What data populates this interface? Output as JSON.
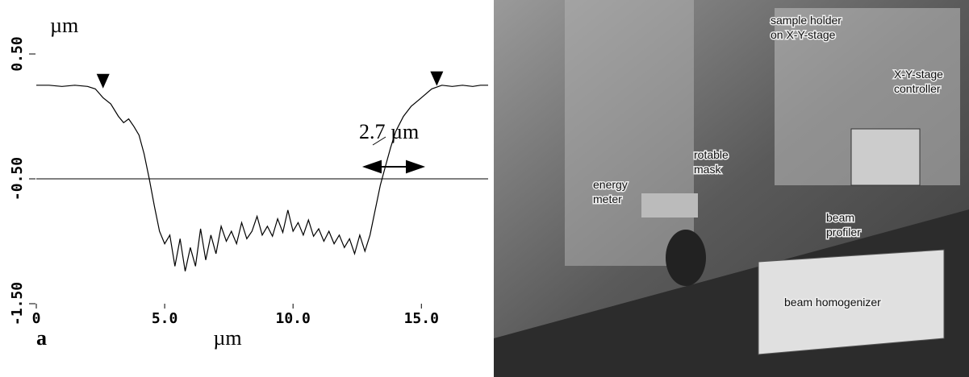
{
  "chart_data": {
    "type": "line",
    "y_unit_label": "µm",
    "x_axis_label": "µm",
    "panel_label": "a",
    "annotation": "2.7 µm",
    "x": [
      0,
      0.5,
      1,
      1.5,
      2,
      2.3,
      2.6,
      2.9,
      3.2,
      3.4,
      3.6,
      3.8,
      4.0,
      4.2,
      4.4,
      4.6,
      4.8,
      5.0,
      5.2,
      5.4,
      5.6,
      5.8,
      6.0,
      6.2,
      6.4,
      6.6,
      6.8,
      7.0,
      7.2,
      7.4,
      7.6,
      7.8,
      8.0,
      8.2,
      8.4,
      8.6,
      8.8,
      9.0,
      9.2,
      9.4,
      9.6,
      9.8,
      10.0,
      10.2,
      10.4,
      10.6,
      10.8,
      11.0,
      11.2,
      11.4,
      11.6,
      11.8,
      12.0,
      12.2,
      12.4,
      12.6,
      12.8,
      13.0,
      13.2,
      13.4,
      13.6,
      13.8,
      14.0,
      14.3,
      14.6,
      15.0,
      15.4,
      15.8,
      16.2,
      16.6,
      17.0,
      17.3,
      17.6
    ],
    "values": [
      0.25,
      0.25,
      0.24,
      0.25,
      0.24,
      0.22,
      0.15,
      0.1,
      0.0,
      -0.05,
      -0.02,
      -0.08,
      -0.15,
      -0.3,
      -0.5,
      -0.72,
      -0.92,
      -1.02,
      -0.95,
      -1.2,
      -0.98,
      -1.24,
      -1.05,
      -1.2,
      -0.9,
      -1.15,
      -0.95,
      -1.1,
      -0.88,
      -1.0,
      -0.92,
      -1.02,
      -0.85,
      -0.98,
      -0.92,
      -0.8,
      -0.95,
      -0.88,
      -0.96,
      -0.82,
      -0.93,
      -0.75,
      -0.92,
      -0.85,
      -0.95,
      -0.83,
      -0.96,
      -0.9,
      -1.0,
      -0.92,
      -1.02,
      -0.95,
      -1.05,
      -0.98,
      -1.1,
      -0.95,
      -1.08,
      -0.95,
      -0.75,
      -0.55,
      -0.4,
      -0.25,
      -0.12,
      0.0,
      0.08,
      0.15,
      0.22,
      0.25,
      0.24,
      0.25,
      0.24,
      0.25,
      0.25
    ],
    "color": "#000000",
    "xlim": [
      0,
      17.6
    ],
    "ylim": [
      -1.5,
      0.9
    ],
    "xticks": [
      0,
      {
        "value": 5,
        "label": "5.0"
      },
      {
        "value": 10,
        "label": "10.0"
      },
      {
        "value": 15,
        "label": "15.0"
      }
    ],
    "yticks": [
      {
        "value": 0.5,
        "label": "0.50"
      },
      {
        "value": -0.5,
        "label": "-0.50"
      },
      {
        "value": -1.5,
        "label": "-1.50"
      }
    ],
    "reference_line": -0.5,
    "markers": [
      {
        "x": 2.6,
        "y": 0.25
      },
      {
        "x": 15.6,
        "y": 0.27
      }
    ]
  },
  "photo": {
    "labels": [
      [
        "sample holder",
        "on X-Y-stage"
      ],
      [
        "X-Y-stage",
        "controller"
      ],
      [
        "rotable",
        "mask"
      ],
      [
        "energy",
        "meter"
      ],
      [
        "beam",
        "profiler"
      ],
      [
        "beam homogenizer"
      ]
    ]
  }
}
